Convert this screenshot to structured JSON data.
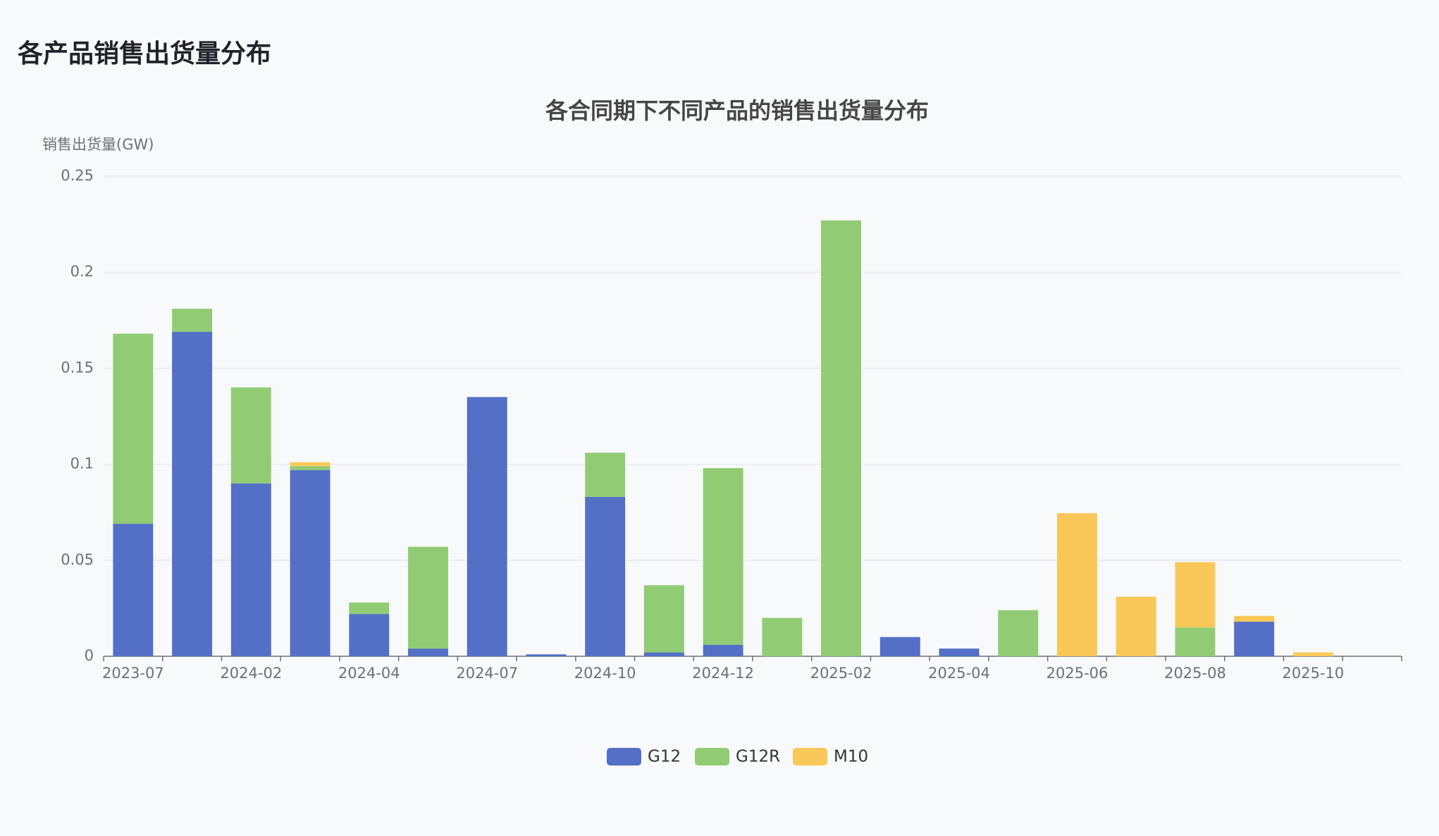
{
  "page_title": "各产品销售出货量分布",
  "chart_data": {
    "type": "stacked-bar",
    "title": "各合同期下不同产品的销售出货量分布",
    "y_label": "销售出货量(GW)",
    "categories": [
      "2023-07",
      null,
      "2024-02",
      null,
      "2024-04",
      null,
      "2024-07",
      null,
      "2024-10",
      null,
      "2024-12",
      null,
      "2025-02",
      null,
      "2025-04",
      null,
      "2025-06",
      null,
      "2025-08",
      null,
      "2025-10",
      null
    ],
    "series": [
      {
        "name": "G12",
        "color": "#5470c6",
        "values": [
          0.069,
          0.169,
          0.09,
          0.097,
          0.022,
          0.004,
          0.135,
          0.001,
          0.083,
          0.002,
          0.006,
          null,
          null,
          0.01,
          0.004,
          null,
          null,
          null,
          null,
          0.018,
          null,
          null
        ]
      },
      {
        "name": "G12R",
        "color": "#91cc75",
        "values": [
          0.099,
          0.012,
          0.05,
          0.002,
          0.006,
          0.053,
          null,
          null,
          0.023,
          0.035,
          0.092,
          0.02,
          0.227,
          null,
          null,
          0.024,
          null,
          null,
          0.015,
          null,
          null,
          null
        ]
      },
      {
        "name": "M10",
        "color": "#fac858",
        "values": [
          null,
          null,
          null,
          0.002,
          null,
          null,
          null,
          null,
          null,
          null,
          null,
          null,
          null,
          null,
          null,
          null,
          0.0745,
          0.031,
          0.034,
          0.003,
          0.002,
          null
        ]
      }
    ],
    "ylim": [
      0,
      0.25
    ],
    "yticks": [
      0,
      0.05,
      0.1,
      0.15,
      0.2,
      0.25
    ],
    "grid": true,
    "legend": "bottom"
  }
}
